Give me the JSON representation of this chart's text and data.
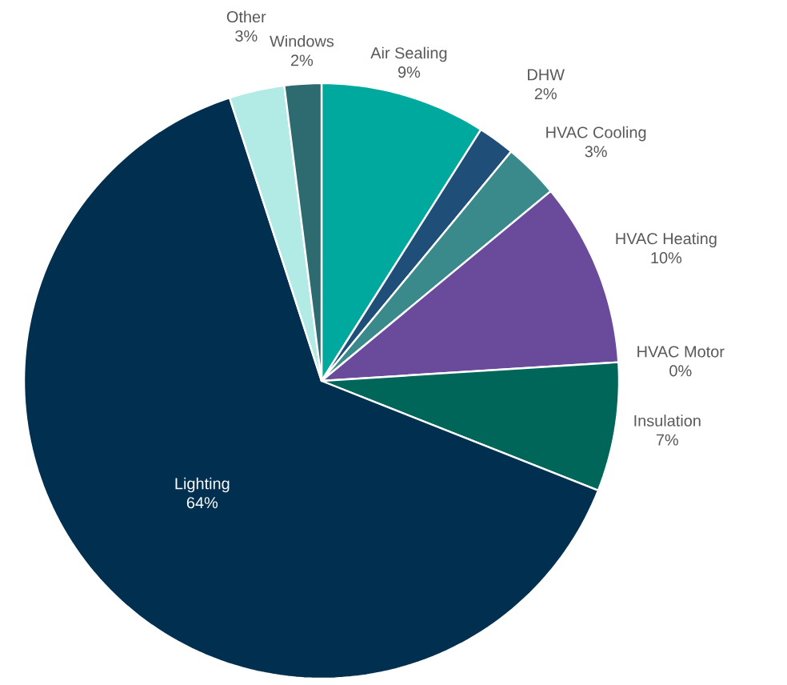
{
  "chart_data": {
    "type": "pie",
    "categories": [
      "Air Sealing",
      "DHW",
      "HVAC Cooling",
      "HVAC Heating",
      "HVAC Motor",
      "Insulation",
      "Lighting",
      "Other",
      "Windows"
    ],
    "values": [
      9,
      2,
      3,
      10,
      0,
      7,
      64,
      3,
      2
    ],
    "value_labels": [
      "9%",
      "2%",
      "3%",
      "10%",
      "0%",
      "7%",
      "64%",
      "3%",
      "2%"
    ],
    "colors": [
      "#00a99d",
      "#1f4e79",
      "#3a8a8c",
      "#6a4a9a",
      "#4a7fa0",
      "#00665a",
      "#002f4f",
      "#b2ebe6",
      "#2e6b70"
    ]
  }
}
